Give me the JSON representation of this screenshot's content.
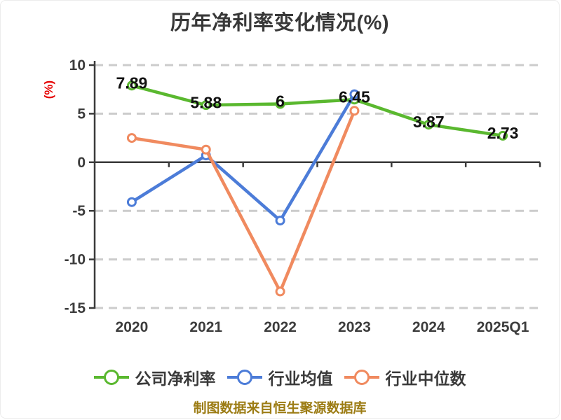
{
  "title": "历年净利率变化情况(%)",
  "footer": "制图数据来自恒生聚源数据库",
  "legend": [
    "公司净利率",
    "行业均值",
    "行业中位数"
  ],
  "colors": {
    "background": "#ffffff",
    "series_green": "#5AB82F",
    "series_blue": "#4C7CD8",
    "series_orange": "#F08A5F",
    "grid": "#cccccc",
    "axis": "#3a3a3a",
    "title_text": "#383838",
    "tick_text": "#3c3c3c",
    "data_label_text": "#111111",
    "y_unit_red": "#e60000",
    "footer_gold": "#9c7c14",
    "marker_fill": "#ffffff"
  },
  "chart_data": {
    "type": "line",
    "title": "历年净利率变化情况(%)",
    "xlabel": "",
    "ylabel": "(%)",
    "categories": [
      "2020",
      "2021",
      "2022",
      "2023",
      "2024",
      "2025Q1"
    ],
    "yticks": [
      10,
      5,
      0,
      -5,
      -10,
      -15
    ],
    "ylim": [
      -15,
      10
    ],
    "grid": "horizontal-dashed",
    "legend_position": "bottom",
    "series": [
      {
        "name": "公司净利率",
        "color": "#5AB82F",
        "values": [
          7.89,
          5.88,
          6,
          6.45,
          3.87,
          2.73
        ],
        "point_labels": [
          "7.89",
          "5.88",
          "6",
          "6.45",
          "3.87",
          "2.73"
        ]
      },
      {
        "name": "行业均值",
        "color": "#4C7CD8",
        "values": [
          -4.1,
          0.7,
          -6,
          7,
          null,
          null
        ],
        "point_labels": null
      },
      {
        "name": "行业中位数",
        "color": "#F08A5F",
        "values": [
          2.5,
          1.3,
          -13.3,
          5.3,
          null,
          null
        ],
        "point_labels": null
      }
    ]
  }
}
